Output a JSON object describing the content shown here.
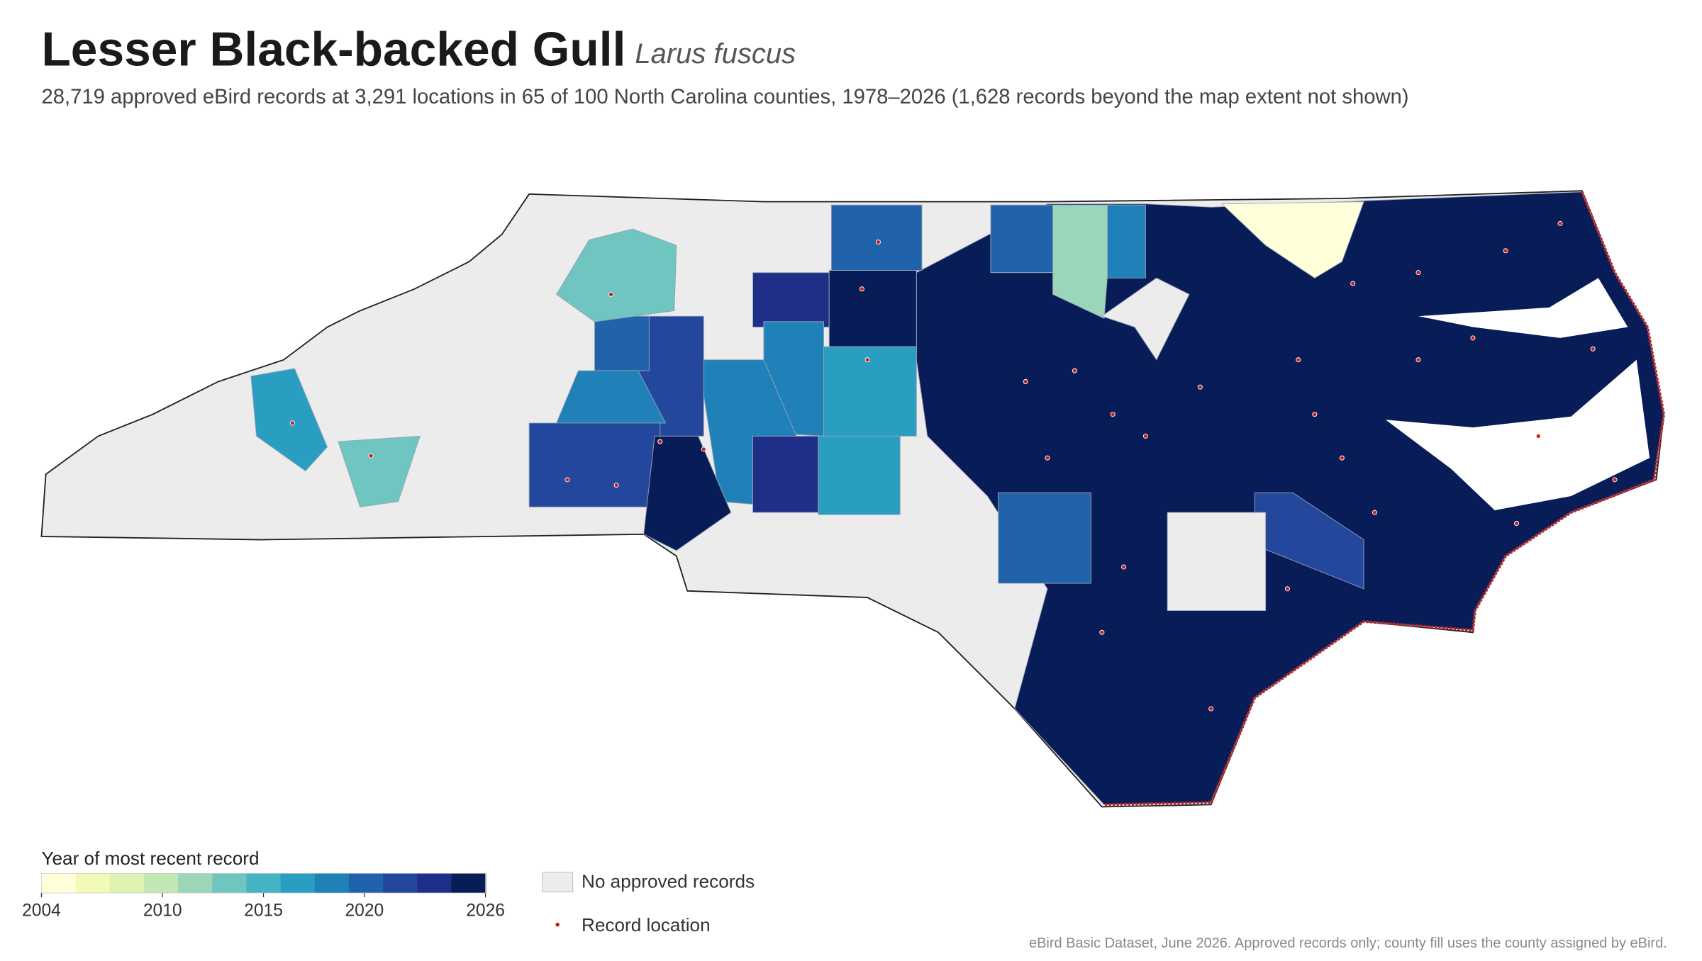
{
  "header": {
    "title": "Lesser Black-backed Gull",
    "scientific_name": "Larus fuscus",
    "subtitle": "28,719 approved eBird records at 3,291 locations in 65 of 100 North Carolina counties, 1978–2026 (1,628 records beyond the map extent not shown)"
  },
  "map": {
    "region_years": [
      2026,
      2004,
      2012,
      2018,
      2020,
      2020,
      2024,
      2026,
      2017,
      2019,
      2019,
      2022,
      2020,
      2018,
      2023,
      2026,
      2024,
      2017,
      2021,
      2023,
      2016,
      2014,
      2014
    ]
  },
  "legend": {
    "title": "Year of most recent record",
    "colors": [
      "#ffffd9",
      "#f3fab6",
      "#dff2b2",
      "#c2e6b4",
      "#9bd6b8",
      "#6fc5bf",
      "#46b3c2",
      "#2a9ec1",
      "#1f81b8",
      "#2163aa",
      "#23479c",
      "#1f2f88",
      "#081d58"
    ],
    "clim": [
      2004,
      2026
    ],
    "ticks": [
      2004,
      2010,
      2015,
      2020,
      2026
    ],
    "no_data_label": "No approved records",
    "no_data_color": "#ececec",
    "points_label": "Record location",
    "points_color": "#c81e1e"
  },
  "footer": {
    "source": "eBird Basic Dataset, June 2026. Approved records only; county fill uses the county assigned by eBird."
  }
}
